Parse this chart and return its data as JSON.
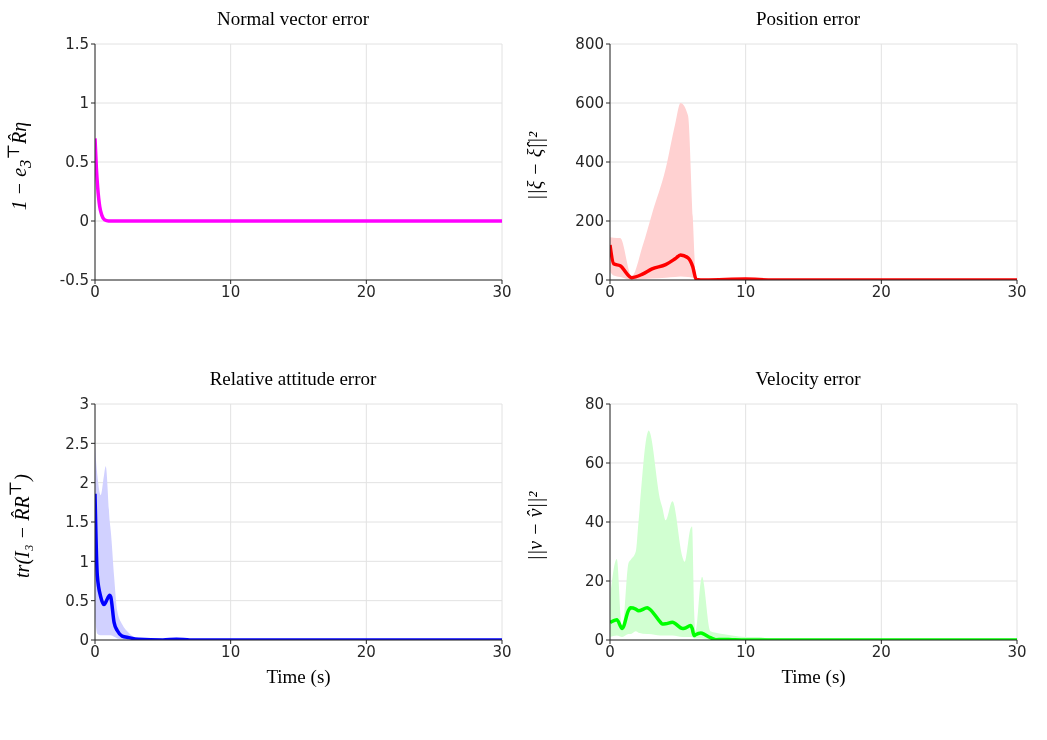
{
  "chart_data": [
    {
      "type": "line",
      "title": "Normal vector error",
      "ylabel": "1 − e$_{3}$$^{⊤}$R̂η",
      "x": [
        0,
        0.1,
        0.2,
        0.35,
        0.5,
        0.7,
        1,
        30
      ],
      "xlim": [
        0,
        30
      ],
      "xticks": [
        0,
        10,
        20,
        30
      ],
      "ylim": [
        -0.5,
        1.5
      ],
      "yticks": [
        -0.5,
        0,
        0.5,
        1,
        1.5
      ],
      "grid": true,
      "series": [
        {
          "color": "#ff00ff",
          "values": [
            0.7,
            0.45,
            0.28,
            0.12,
            0.05,
            0.01,
            0,
            0
          ]
        }
      ]
    },
    {
      "type": "line",
      "title": "Position error",
      "ylabel": "||ξ − ξ̂||²",
      "x": [
        0,
        0.27,
        0.75,
        1.6,
        2.4,
        3.1,
        4.1,
        4.8,
        5.2,
        5.75,
        6.1,
        6.35,
        7,
        10,
        12,
        20,
        30
      ],
      "xlim": [
        0,
        30
      ],
      "xticks": [
        0,
        10,
        20,
        30
      ],
      "ylim": [
        0,
        800
      ],
      "yticks": [
        0,
        200,
        400,
        600,
        800
      ],
      "grid": true,
      "series": [
        {
          "color": "#ff0000",
          "values": [
            119,
            55,
            48,
            8,
            20,
            38,
            52,
            72,
            85,
            75,
            45,
            2,
            0,
            3,
            0,
            0,
            0
          ],
          "lower": [
            30,
            15,
            10,
            0,
            3,
            5,
            8,
            10,
            12,
            10,
            8,
            0,
            0,
            0,
            0,
            0,
            0
          ],
          "upper": [
            145,
            143,
            142,
            13,
            115,
            225,
            377,
            528,
            600,
            558,
            215,
            2,
            0,
            5,
            0,
            0,
            0
          ]
        }
      ]
    },
    {
      "type": "line",
      "title": "Relative attitude error",
      "ylabel": "tr(I₃ − R̂R$^{⊤}$)",
      "xlabel": "Time (s)",
      "x": [
        0,
        0.17,
        0.42,
        0.67,
        0.79,
        1.09,
        1.16,
        1.41,
        1.64,
        2,
        2.5,
        3.2,
        5,
        6,
        7,
        30
      ],
      "xlim": [
        0,
        30
      ],
      "xticks": [
        0,
        10,
        20,
        30
      ],
      "ylim": [
        0,
        3
      ],
      "yticks": [
        0,
        0.5,
        1,
        1.5,
        2,
        2.5,
        3
      ],
      "grid": true,
      "series": [
        {
          "color": "#0000ff",
          "values": [
            1.86,
            0.82,
            0.55,
            0.45,
            0.48,
            0.57,
            0.55,
            0.22,
            0.12,
            0.05,
            0.03,
            0.01,
            0,
            0.01,
            0,
            0
          ],
          "lower": [
            0.3,
            0.08,
            0.06,
            0.06,
            0.06,
            0.06,
            0.06,
            0.04,
            0.02,
            0.01,
            0,
            0,
            0,
            0,
            0,
            0
          ],
          "upper": [
            2.45,
            2.1,
            1.84,
            2.1,
            2.21,
            1.5,
            1.39,
            0.8,
            0.37,
            0.2,
            0.09,
            0.02,
            0.01,
            0.03,
            0,
            0
          ]
        }
      ]
    },
    {
      "type": "line",
      "title": "Velocity error",
      "ylabel": "||v − v̂||²",
      "xlabel": "Time (s)",
      "x": [
        0,
        0.5,
        0.9,
        1.36,
        1.5,
        1.9,
        2.1,
        2.75,
        2.85,
        3.72,
        3.85,
        4.1,
        4.6,
        5.35,
        5.5,
        5.95,
        6.05,
        6.2,
        6.3,
        6.7,
        6.78,
        7.4,
        7.8,
        8.3,
        9,
        10,
        11,
        12,
        30
      ],
      "xlim": [
        0,
        30
      ],
      "xticks": [
        0,
        10,
        20,
        30
      ],
      "ylim": [
        0,
        80
      ],
      "yticks": [
        0,
        20,
        40,
        60,
        80
      ],
      "grid": true,
      "series": [
        {
          "color": "#00ff00",
          "values": [
            5.9,
            6.9,
            3.9,
            10,
            10.9,
            10.5,
            9.9,
            10.9,
            10.7,
            6,
            5.4,
            5.5,
            6,
            3.9,
            4,
            4.9,
            4,
            1.5,
            1.8,
            2.4,
            2.3,
            0.8,
            0.1,
            0.2,
            0.1,
            0,
            0,
            0,
            0
          ],
          "lower": [
            1,
            1.5,
            1,
            2,
            2,
            3,
            2.5,
            2,
            2,
            1.5,
            1.5,
            1.5,
            1.5,
            1,
            1,
            1,
            1,
            0.5,
            0.5,
            0.5,
            0.5,
            0,
            0,
            0,
            0,
            0,
            0,
            0,
            0
          ],
          "upper": [
            14,
            27.5,
            4,
            26,
            27,
            30,
            40,
            70,
            71,
            47,
            45,
            40.6,
            47,
            28,
            26.5,
            38,
            38.5,
            10,
            3,
            20,
            21.4,
            3,
            2.5,
            2,
            1.5,
            1,
            1,
            0,
            0
          ]
        }
      ]
    }
  ]
}
